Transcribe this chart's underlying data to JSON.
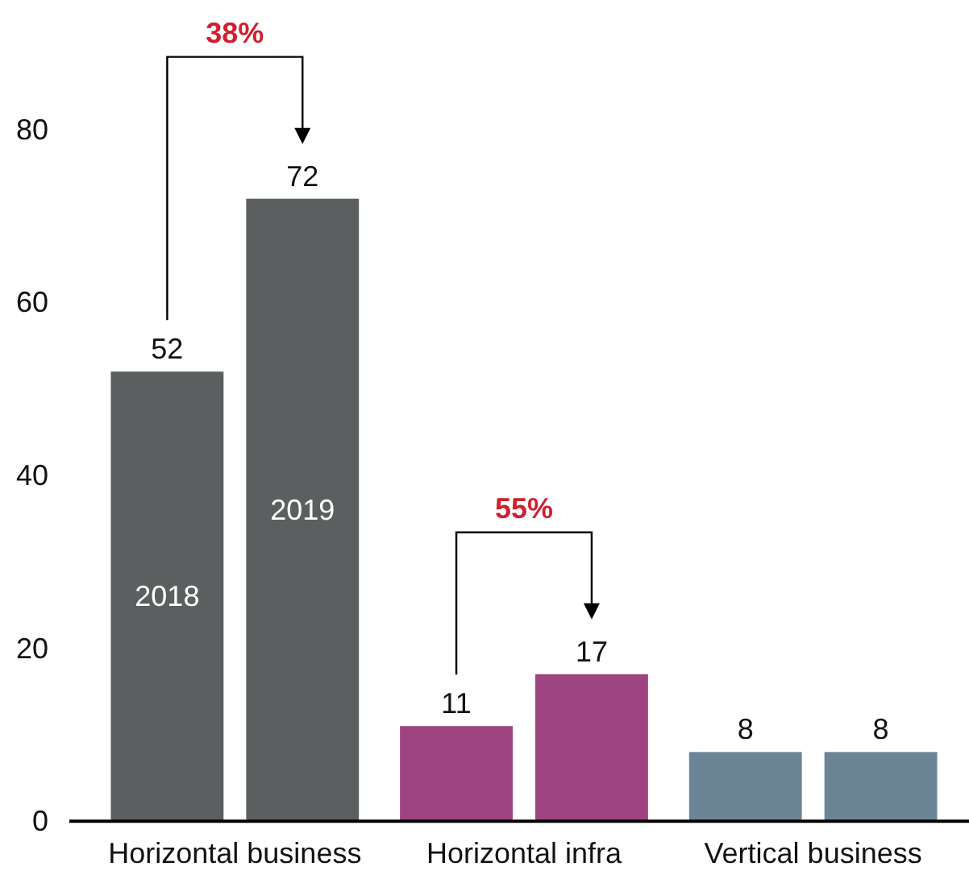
{
  "chart_data": {
    "type": "bar",
    "categories": [
      "Horizontal business",
      "Horizontal infra",
      "Vertical business"
    ],
    "series": [
      {
        "name": "2018",
        "colors": [
          "#5c5f60",
          "#9e4480",
          "#6b8597"
        ],
        "values": [
          52,
          11,
          8
        ]
      },
      {
        "name": "2019",
        "colors": [
          "#5c5f60",
          "#9e4480",
          "#6b8597"
        ],
        "values": [
          72,
          17,
          8
        ]
      }
    ],
    "ylim": [
      0,
      80
    ],
    "yticks": [
      0,
      20,
      40,
      60,
      80
    ],
    "grid": false,
    "legend": false,
    "data_labels": true,
    "annotations": [
      "38%",
      "55%"
    ]
  }
}
